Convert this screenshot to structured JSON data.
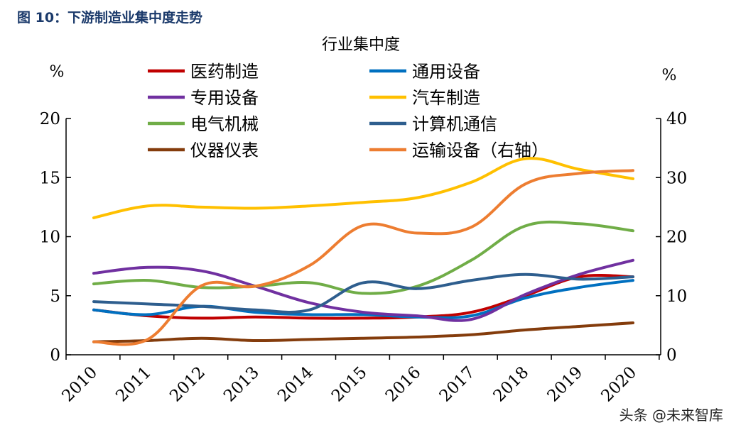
{
  "caption": "图 10：下游制造业集中度走势",
  "watermark": "头条 @未来智库",
  "chart_data": {
    "type": "line",
    "title": "行业集中度",
    "left_unit": "%",
    "right_unit": "%",
    "x": [
      "2010",
      "2011",
      "2012",
      "2013",
      "2014",
      "2015",
      "2016",
      "2017",
      "2018",
      "2019",
      "2020"
    ],
    "ylim_left": [
      0,
      20
    ],
    "ylim_right": [
      0,
      40
    ],
    "yticks_left": [
      0,
      5,
      10,
      15,
      20
    ],
    "yticks_right": [
      0,
      10,
      20,
      30,
      40
    ],
    "legend_placement": "top",
    "series": [
      {
        "name": "医药制造",
        "color": "#c00000",
        "axis": "left",
        "values": [
          3.8,
          3.3,
          3.1,
          3.2,
          3.1,
          3.1,
          3.2,
          3.6,
          5.0,
          6.6,
          6.6
        ]
      },
      {
        "name": "通用设备",
        "color": "#0070c0",
        "axis": "left",
        "values": [
          3.8,
          3.4,
          4.1,
          3.6,
          3.4,
          3.4,
          3.2,
          3.3,
          4.8,
          5.7,
          6.3
        ]
      },
      {
        "name": "专用设备",
        "color": "#7030a0",
        "axis": "left",
        "values": [
          6.9,
          7.4,
          7.1,
          5.8,
          4.4,
          3.6,
          3.3,
          3.0,
          5.1,
          6.8,
          8.0
        ]
      },
      {
        "name": "汽车制造",
        "color": "#ffc000",
        "axis": "left",
        "values": [
          11.6,
          12.6,
          12.5,
          12.4,
          12.6,
          12.9,
          13.3,
          14.6,
          16.6,
          15.7,
          14.9
        ]
      },
      {
        "name": "电气机械",
        "color": "#70ad47",
        "axis": "left",
        "values": [
          6.0,
          6.3,
          5.7,
          5.8,
          6.1,
          5.2,
          5.8,
          8.0,
          10.9,
          11.1,
          10.5
        ]
      },
      {
        "name": "计算机通信",
        "color": "#2e5e8e",
        "axis": "left",
        "values": [
          4.5,
          4.3,
          4.1,
          3.8,
          3.8,
          6.1,
          5.6,
          6.3,
          6.8,
          6.4,
          6.6
        ]
      },
      {
        "name": "仪器仪表",
        "color": "#843c0c",
        "axis": "left",
        "values": [
          1.1,
          1.2,
          1.4,
          1.2,
          1.3,
          1.4,
          1.5,
          1.7,
          2.1,
          2.4,
          2.7
        ]
      },
      {
        "name": "运输设备（右轴）",
        "color": "#ed7d31",
        "axis": "right",
        "values": [
          2.2,
          2.6,
          11.7,
          11.6,
          15.1,
          21.9,
          20.6,
          21.6,
          28.9,
          30.7,
          31.2
        ]
      }
    ]
  }
}
